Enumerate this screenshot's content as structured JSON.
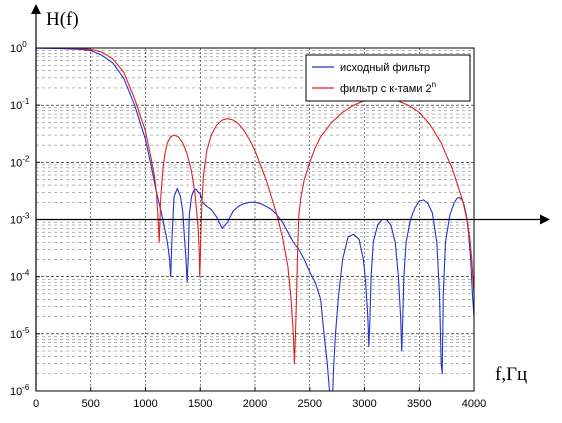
{
  "chart_data": {
    "type": "line",
    "title": "",
    "ylabel": "H(f)",
    "xlabel": "f,Гц",
    "y_scale": "log",
    "xlim": [
      0,
      4000
    ],
    "ylim": [
      1e-06,
      1
    ],
    "grid": true,
    "legend_position": "top-right",
    "x_ticks": [
      {
        "value": 0,
        "label": "0"
      },
      {
        "value": 500,
        "label": "500"
      },
      {
        "value": 1000,
        "label": "1000"
      },
      {
        "value": 1500,
        "label": "1500"
      },
      {
        "value": 2000,
        "label": "2000"
      },
      {
        "value": 2500,
        "label": "2500"
      },
      {
        "value": 3000,
        "label": "3000"
      },
      {
        "value": 3500,
        "label": "3500"
      },
      {
        "value": 4000,
        "label": "4000"
      }
    ],
    "y_ticks": [
      {
        "value": 1,
        "base": "10",
        "exp": "0"
      },
      {
        "value": 0.1,
        "base": "10",
        "exp": "-1"
      },
      {
        "value": 0.01,
        "base": "10",
        "exp": "-2"
      },
      {
        "value": 0.001,
        "base": "10",
        "exp": "-3"
      },
      {
        "value": 0.0001,
        "base": "10",
        "exp": "-4"
      },
      {
        "value": 1e-05,
        "base": "10",
        "exp": "-5"
      },
      {
        "value": 1e-06,
        "base": "10",
        "exp": "-6"
      }
    ],
    "cross_axis_y": 0.001,
    "series": [
      {
        "name": "исходный фильтр",
        "color": "#2233cc",
        "x": [
          0,
          200,
          400,
          500,
          600,
          700,
          800,
          900,
          1000,
          1050,
          1100,
          1150,
          1200,
          1220,
          1230,
          1240,
          1260,
          1290,
          1320,
          1340,
          1355,
          1370,
          1380,
          1390,
          1400,
          1420,
          1440,
          1460,
          1480,
          1500,
          1520,
          1560,
          1600,
          1650,
          1700,
          1750,
          1800,
          1850,
          1900,
          1950,
          2000,
          2050,
          2100,
          2150,
          2200,
          2250,
          2300,
          2350,
          2400,
          2450,
          2500,
          2550,
          2600,
          2630,
          2660,
          2680,
          2690,
          2700,
          2710,
          2720,
          2735,
          2760,
          2800,
          2850,
          2900,
          2950,
          2990,
          3010,
          3030,
          3040,
          3050,
          3060,
          3080,
          3120,
          3160,
          3200,
          3240,
          3280,
          3310,
          3330,
          3340,
          3350,
          3360,
          3380,
          3420,
          3460,
          3500,
          3540,
          3580,
          3620,
          3660,
          3685,
          3700,
          3710,
          3720,
          3740,
          3780,
          3820,
          3850,
          3870,
          3890,
          3910,
          3930,
          3950,
          3970,
          3985,
          4000
        ],
        "y": [
          0.99,
          0.98,
          0.95,
          0.9,
          0.75,
          0.55,
          0.3,
          0.1,
          0.025,
          0.009,
          0.003,
          0.0012,
          0.0004,
          0.0002,
          0.0001,
          0.0004,
          0.0025,
          0.0035,
          0.0025,
          0.0014,
          0.0005,
          0.0002,
          8e-05,
          0.0002,
          0.0012,
          0.0025,
          0.0032,
          0.0034,
          0.003,
          0.0028,
          0.002,
          0.0017,
          0.0015,
          0.0011,
          0.0007,
          0.0009,
          0.0014,
          0.0017,
          0.0019,
          0.002,
          0.002,
          0.0019,
          0.0017,
          0.0015,
          0.0012,
          0.0009,
          0.0006,
          0.0004,
          0.0003,
          0.0002,
          0.00012,
          8e-05,
          4e-05,
          1e-05,
          3e-06,
          1e-06,
          8e-07,
          6e-07,
          1e-06,
          3e-06,
          1e-05,
          4e-05,
          0.0002,
          0.0005,
          0.00055,
          0.00045,
          0.0002,
          8e-05,
          2e-05,
          6e-06,
          2e-05,
          0.0001,
          0.0004,
          0.0008,
          0.001,
          0.001,
          0.0008,
          0.0004,
          0.0001,
          2e-05,
          5e-06,
          2e-05,
          0.0001,
          0.0004,
          0.001,
          0.0016,
          0.0021,
          0.0022,
          0.0019,
          0.0013,
          0.0004,
          5e-05,
          3e-06,
          2e-06,
          5e-05,
          0.0004,
          0.0012,
          0.002,
          0.0024,
          0.0024,
          0.0022,
          0.0018,
          0.0012,
          0.0006,
          0.0002,
          5e-05,
          2e-05
        ]
      },
      {
        "name": "фильтр с к-тами 2ⁿ",
        "color": "#dd2222",
        "x": [
          0,
          200,
          400,
          500,
          600,
          700,
          800,
          900,
          1000,
          1050,
          1080,
          1100,
          1110,
          1120,
          1125,
          1130,
          1140,
          1160,
          1180,
          1200,
          1230,
          1260,
          1300,
          1340,
          1380,
          1420,
          1450,
          1470,
          1480,
          1490,
          1495,
          1500,
          1505,
          1515,
          1530,
          1560,
          1600,
          1650,
          1700,
          1750,
          1800,
          1850,
          1900,
          1950,
          2000,
          2050,
          2100,
          2150,
          2200,
          2250,
          2300,
          2330,
          2350,
          2360,
          2370,
          2380,
          2390,
          2400,
          2420,
          2450,
          2500,
          2550,
          2600,
          2700,
          2800,
          2900,
          3000,
          3100,
          3200,
          3300,
          3400,
          3500,
          3600,
          3700,
          3750,
          3800,
          3850,
          3900,
          3940,
          3960,
          3980,
          3990,
          4000
        ],
        "y": [
          1.0,
          1.0,
          0.98,
          0.95,
          0.85,
          0.65,
          0.38,
          0.13,
          0.035,
          0.012,
          0.006,
          0.003,
          0.0015,
          0.0007,
          0.0004,
          0.0007,
          0.0025,
          0.008,
          0.015,
          0.022,
          0.028,
          0.03,
          0.028,
          0.022,
          0.014,
          0.007,
          0.003,
          0.0012,
          0.0007,
          0.0003,
          0.0001,
          0.0002,
          0.0005,
          0.002,
          0.006,
          0.016,
          0.03,
          0.045,
          0.055,
          0.058,
          0.055,
          0.047,
          0.036,
          0.025,
          0.016,
          0.009,
          0.005,
          0.0025,
          0.0012,
          0.0005,
          0.00015,
          4e-05,
          1e-05,
          3e-06,
          1e-05,
          5e-05,
          0.0003,
          0.0012,
          0.0025,
          0.005,
          0.01,
          0.018,
          0.028,
          0.05,
          0.075,
          0.1,
          0.12,
          0.13,
          0.13,
          0.12,
          0.1,
          0.075,
          0.045,
          0.022,
          0.013,
          0.008,
          0.004,
          0.002,
          0.0009,
          0.0005,
          0.0002,
          0.0001,
          5e-05
        ]
      }
    ],
    "legend": [
      {
        "label": "исходный фильтр",
        "color": "#2233cc"
      },
      {
        "label": "фильтр с к-тами 2",
        "superscript": "n",
        "color": "#dd2222"
      }
    ],
    "colors": {
      "frame": "#000000",
      "grid": "#000000",
      "background": "#ffffff"
    }
  }
}
